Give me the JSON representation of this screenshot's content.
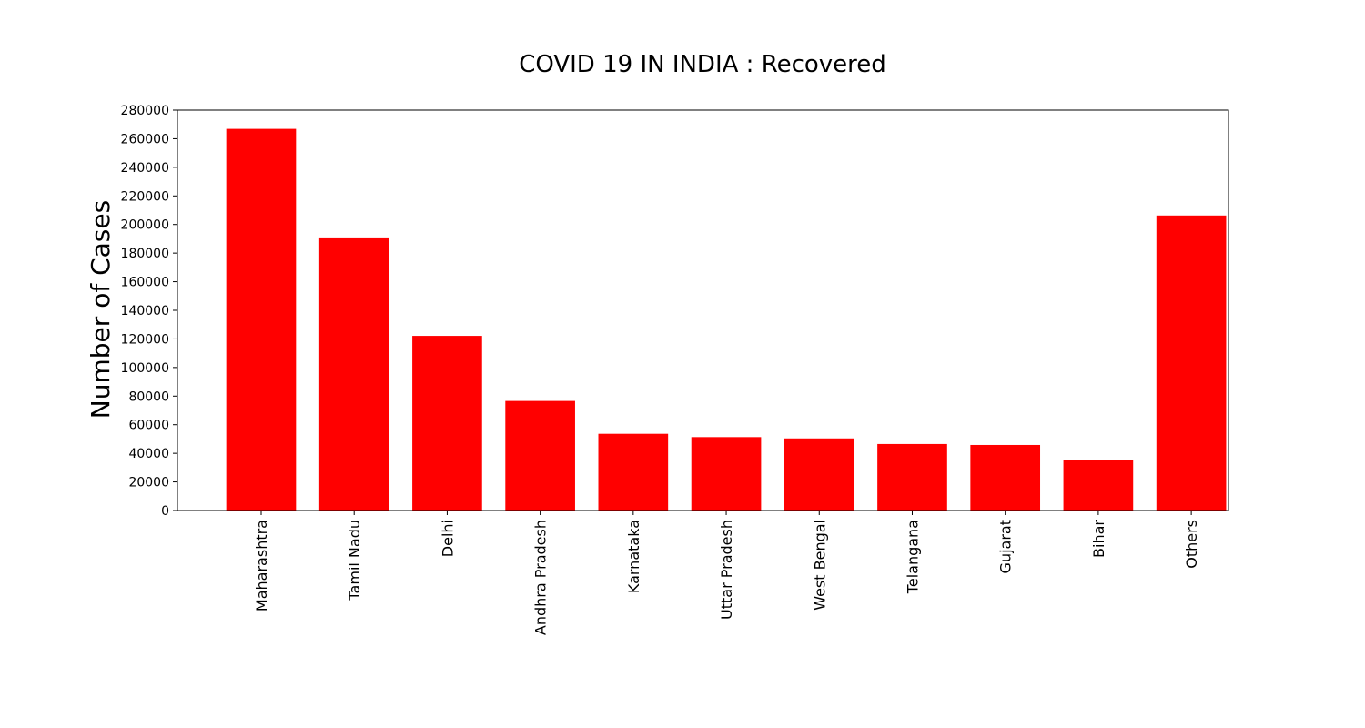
{
  "chart_data": {
    "type": "bar",
    "title": "COVID 19 IN INDIA : Recovered",
    "xlabel": "",
    "ylabel": "Number of Cases",
    "categories": [
      "Maharashtra",
      "Tamil Nadu",
      "Delhi",
      "Andhra Pradesh",
      "Karnataka",
      "Uttar Pradesh",
      "West Bengal",
      "Telangana",
      "Gujarat",
      "Bihar",
      "Others"
    ],
    "values": [
      266883,
      190966,
      122131,
      76614,
      53648,
      51334,
      50412,
      46502,
      45837,
      35473,
      206300
    ],
    "ylim": [
      0,
      280000
    ],
    "yticks": [
      0,
      20000,
      40000,
      60000,
      80000,
      100000,
      120000,
      140000,
      160000,
      180000,
      200000,
      220000,
      240000,
      260000,
      280000
    ],
    "bar_color": "#ff0000",
    "grid": false,
    "legend": "none"
  }
}
